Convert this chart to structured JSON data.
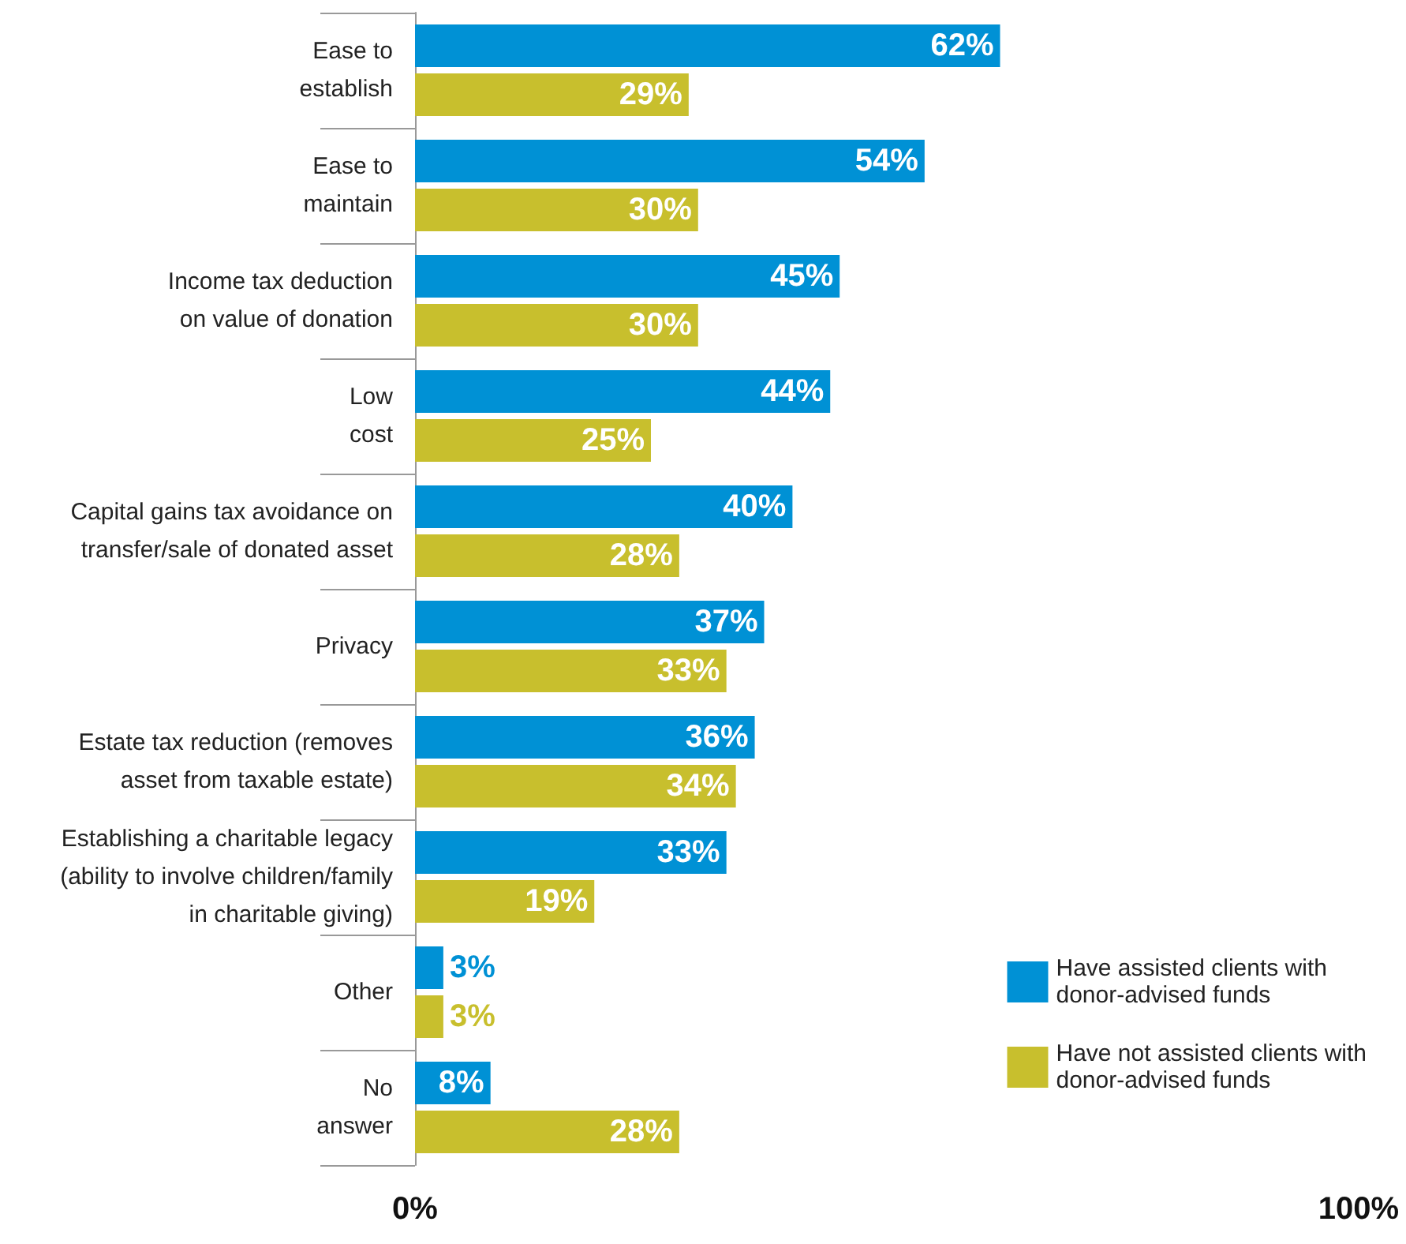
{
  "chart_data": {
    "type": "bar",
    "orientation": "horizontal",
    "categories": [
      "Ease to\nestablish",
      "Ease to\nmaintain",
      "Income tax deduction\non value of donation",
      "Low\ncost",
      "Capital gains tax avoidance on\ntransfer/sale of donated asset",
      "Privacy",
      "Estate tax reduction (removes\nasset from taxable estate)",
      "Establishing a charitable legacy\n(ability to involve children/family\nin charitable giving)",
      "Other",
      "No\nanswer"
    ],
    "series": [
      {
        "name": "Have assisted clients with\ndonor-advised funds",
        "color": "#0091d5",
        "values": [
          62,
          54,
          45,
          44,
          40,
          37,
          36,
          33,
          3,
          8
        ],
        "value_labels": [
          "62%",
          "54%",
          "45%",
          "44%",
          "40%",
          "37%",
          "36%",
          "33%",
          "3%",
          "8%"
        ]
      },
      {
        "name": "Have not assisted clients with\ndonor-advised funds",
        "color": "#c8bf2d",
        "values": [
          29,
          30,
          30,
          25,
          28,
          33,
          34,
          19,
          3,
          28
        ],
        "value_labels": [
          "29%",
          "30%",
          "30%",
          "25%",
          "28%",
          "33%",
          "34%",
          "19%",
          "3%",
          "28%"
        ]
      }
    ],
    "xlim": [
      0,
      100
    ],
    "xticks": [
      {
        "value": 0,
        "label": "0%"
      },
      {
        "value": 100,
        "label": "100%"
      }
    ],
    "grid": false,
    "legend": "bottom right"
  }
}
